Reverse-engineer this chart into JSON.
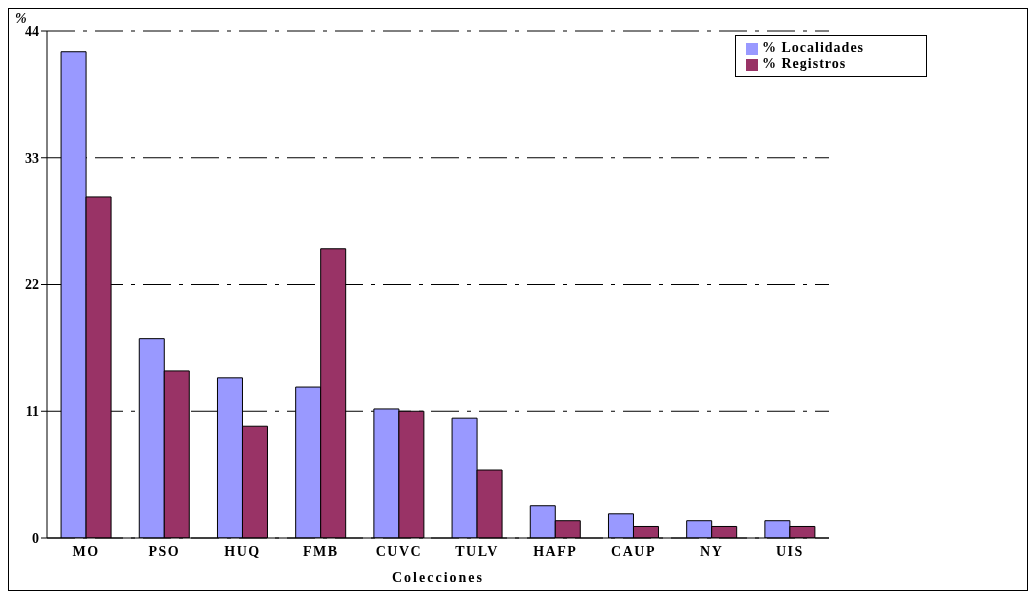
{
  "chart_data": {
    "type": "bar",
    "ylabel": "%",
    "xlabel": "Colecciones",
    "categories": [
      "MO",
      "PSO",
      "HUQ",
      "FMB",
      "CUVC",
      "TULV",
      "HAFP",
      "CAUP",
      "NY",
      "UIS"
    ],
    "series": [
      {
        "name": "% Localidades",
        "color": "#9999ff",
        "values": [
          42.2,
          17.3,
          13.9,
          13.1,
          11.2,
          10.4,
          2.8,
          2.1,
          1.5,
          1.5
        ]
      },
      {
        "name": "% Registros",
        "color": "#993366",
        "values": [
          29.6,
          14.5,
          9.7,
          25.1,
          11.0,
          5.9,
          1.5,
          1.0,
          1.0,
          1.0
        ]
      }
    ],
    "ylim": [
      0,
      44
    ],
    "yticks": [
      0,
      11,
      22,
      33,
      44
    ],
    "grid": "y",
    "legend": "top right"
  }
}
